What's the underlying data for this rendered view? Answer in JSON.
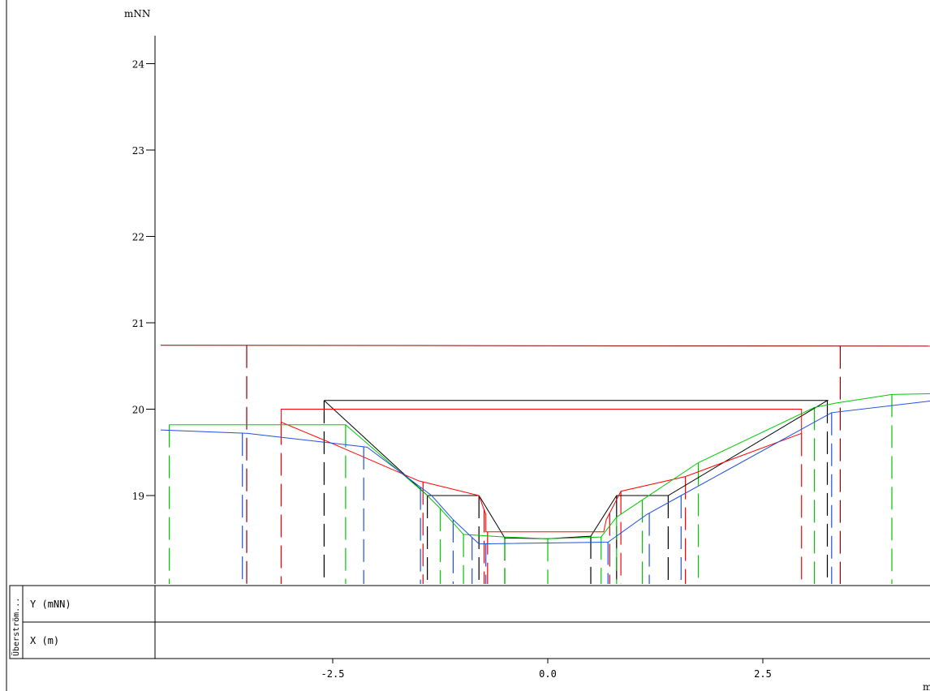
{
  "chart_data": {
    "type": "line",
    "ylabel": "mNN",
    "xlabel": "m",
    "xlim": [
      -4.6,
      4.5
    ],
    "ylim": [
      18.0,
      24.3
    ],
    "yticks": [
      19,
      20,
      21,
      22,
      23,
      24
    ],
    "ytick_labels": [
      "19",
      "20",
      "21",
      "22",
      "23",
      "24"
    ],
    "xticks": [
      -2.5,
      0.0,
      2.5
    ],
    "xtick_labels": [
      "-2.5",
      "0.0",
      "2.5"
    ],
    "grid": false,
    "series": [
      {
        "color": "#8b0000",
        "points": [
          [
            -4.5,
            20.74
          ],
          [
            4.5,
            20.73
          ]
        ],
        "markers": [
          -3.5,
          3.4
        ]
      },
      {
        "color": "#000000",
        "points": [
          [
            -2.6,
            20.1
          ],
          [
            -1.4,
            19.0
          ],
          [
            -0.8,
            19.0
          ],
          [
            -0.5,
            18.51
          ],
          [
            0.0,
            18.5
          ],
          [
            0.5,
            18.53
          ],
          [
            0.8,
            19.0
          ],
          [
            1.4,
            19.0
          ],
          [
            3.25,
            20.1
          ],
          [
            -2.6,
            20.1
          ]
        ],
        "markers": [
          -2.6,
          -1.4,
          -0.8,
          -0.5,
          0.5,
          0.8,
          1.4,
          3.25
        ]
      },
      {
        "color": "#ff0000",
        "points": [
          [
            -3.1,
            19.85
          ],
          [
            -2.5,
            19.6
          ],
          [
            -1.5,
            19.17
          ],
          [
            -0.8,
            19.0
          ],
          [
            -0.72,
            18.78
          ],
          [
            -0.72,
            18.58
          ],
          [
            0.65,
            18.58
          ],
          [
            0.68,
            18.72
          ],
          [
            0.85,
            19.05
          ],
          [
            1.6,
            19.22
          ],
          [
            2.95,
            19.72
          ],
          [
            2.95,
            20.0
          ],
          [
            -3.1,
            20.0
          ],
          [
            -3.1,
            19.85
          ]
        ],
        "markers": [
          -3.1,
          -1.45,
          -0.74,
          -0.7,
          0.72,
          0.85,
          1.6,
          2.95
        ]
      },
      {
        "color": "#00c800",
        "points": [
          [
            -4.4,
            19.82
          ],
          [
            -2.35,
            19.82
          ],
          [
            -1.4,
            19.0
          ],
          [
            -1.25,
            18.85
          ],
          [
            -0.98,
            18.55
          ],
          [
            -0.5,
            18.52
          ],
          [
            0.0,
            18.5
          ],
          [
            0.62,
            18.52
          ],
          [
            0.8,
            18.75
          ],
          [
            1.1,
            18.95
          ],
          [
            1.75,
            19.38
          ],
          [
            3.1,
            20.02
          ],
          [
            3.35,
            20.07
          ],
          [
            4.0,
            20.17
          ],
          [
            4.5,
            20.18
          ]
        ],
        "markers": [
          -4.4,
          -2.35,
          -1.25,
          -0.98,
          -0.5,
          0.0,
          0.62,
          0.8,
          1.1,
          1.75,
          3.1,
          4.0
        ]
      },
      {
        "color": "#2050e0",
        "points": [
          [
            -4.5,
            19.76
          ],
          [
            -3.5,
            19.72
          ],
          [
            -2.1,
            19.56
          ],
          [
            -1.35,
            19.0
          ],
          [
            -1.1,
            18.72
          ],
          [
            -0.8,
            18.44
          ],
          [
            0.7,
            18.46
          ],
          [
            1.15,
            18.78
          ],
          [
            1.55,
            19.0
          ],
          [
            3.3,
            19.96
          ],
          [
            4.5,
            20.1
          ]
        ],
        "markers": [
          -3.55,
          -2.14,
          -1.48,
          -1.1,
          -0.88,
          -0.72,
          0.7,
          1.18,
          1.55,
          3.3
        ]
      }
    ]
  },
  "table": {
    "side_label": "Überström...",
    "rows": [
      {
        "label": "Y  (mNN)"
      },
      {
        "label": "X  (m)"
      }
    ]
  }
}
